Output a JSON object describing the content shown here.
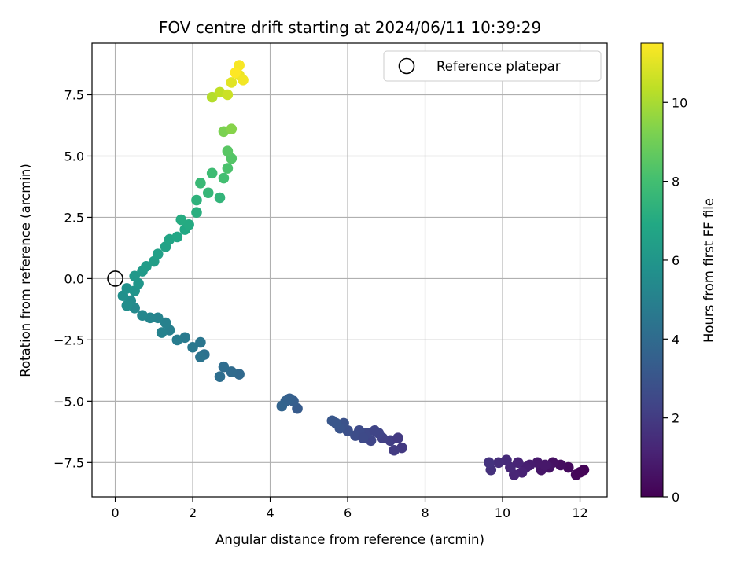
{
  "chart_data": {
    "type": "scatter",
    "title": "FOV centre drift starting at 2024/06/11 10:39:29",
    "xlabel": "Angular distance from reference (arcmin)",
    "ylabel": "Rotation from reference (arcmin)",
    "xlim": [
      -0.6,
      12.7
    ],
    "ylim": [
      -8.9,
      9.6
    ],
    "xticks": [
      0,
      2,
      4,
      6,
      8,
      10,
      12
    ],
    "xtick_labels": [
      "0",
      "2",
      "4",
      "6",
      "8",
      "10",
      "12"
    ],
    "yticks": [
      -7.5,
      -5.0,
      -2.5,
      0.0,
      2.5,
      5.0,
      7.5
    ],
    "ytick_labels": [
      "−7.5",
      "−5.0",
      "−2.5",
      "0.0",
      "2.5",
      "5.0",
      "7.5"
    ],
    "grid": true,
    "legend": {
      "placement": "top-right",
      "entries": [
        "Reference platepar"
      ]
    },
    "reference_point": {
      "x": 0,
      "y": 0
    },
    "colorbar": {
      "label": "Hours from first FF file",
      "colormap": "viridis",
      "range": [
        0,
        11.5
      ],
      "ticks": [
        0,
        2,
        4,
        6,
        8,
        10
      ],
      "tick_labels": [
        "0",
        "2",
        "4",
        "6",
        "8",
        "10"
      ]
    },
    "points": [
      [
        12.1,
        -7.8,
        0.1
      ],
      [
        11.9,
        -8.0,
        0.2
      ],
      [
        11.7,
        -7.7,
        0.3
      ],
      [
        11.5,
        -7.6,
        0.4
      ],
      [
        11.3,
        -7.5,
        0.5
      ],
      [
        11.2,
        -7.7,
        0.6
      ],
      [
        11.0,
        -7.8,
        0.7
      ],
      [
        10.9,
        -7.5,
        0.8
      ],
      [
        10.7,
        -7.6,
        0.9
      ],
      [
        10.6,
        -7.7,
        1.0
      ],
      [
        10.5,
        -7.9,
        1.1
      ],
      [
        10.3,
        -8.0,
        1.2
      ],
      [
        10.2,
        -7.7,
        1.3
      ],
      [
        10.1,
        -7.4,
        1.4
      ],
      [
        9.9,
        -7.5,
        1.5
      ],
      [
        9.7,
        -7.8,
        1.6
      ],
      [
        9.65,
        -7.5,
        1.7
      ],
      [
        12.0,
        -7.9,
        0.15
      ],
      [
        11.1,
        -7.6,
        0.75
      ],
      [
        10.4,
        -7.5,
        1.15
      ],
      [
        7.4,
        -6.9,
        1.9
      ],
      [
        7.2,
        -7.0,
        2.0
      ],
      [
        7.1,
        -6.6,
        2.1
      ],
      [
        6.9,
        -6.5,
        2.2
      ],
      [
        6.8,
        -6.3,
        2.3
      ],
      [
        6.6,
        -6.6,
        2.4
      ],
      [
        6.5,
        -6.3,
        2.5
      ],
      [
        6.3,
        -6.2,
        2.6
      ],
      [
        6.2,
        -6.4,
        2.7
      ],
      [
        6.0,
        -6.2,
        2.8
      ],
      [
        5.9,
        -5.9,
        2.9
      ],
      [
        5.8,
        -6.1,
        3.0
      ],
      [
        5.6,
        -5.8,
        3.1
      ],
      [
        7.3,
        -6.5,
        1.95
      ],
      [
        6.7,
        -6.2,
        2.35
      ],
      [
        6.4,
        -6.5,
        2.55
      ],
      [
        5.7,
        -5.9,
        3.05
      ],
      [
        4.7,
        -5.3,
        3.3
      ],
      [
        4.6,
        -5.0,
        3.4
      ],
      [
        4.5,
        -4.9,
        3.5
      ],
      [
        4.4,
        -5.0,
        3.6
      ],
      [
        4.3,
        -5.2,
        3.7
      ],
      [
        3.2,
        -3.9,
        3.9
      ],
      [
        3.0,
        -3.8,
        4.0
      ],
      [
        2.8,
        -3.6,
        4.1
      ],
      [
        2.7,
        -4.0,
        4.15
      ],
      [
        2.3,
        -3.1,
        4.3
      ],
      [
        2.2,
        -3.2,
        4.4
      ],
      [
        2.2,
        -2.6,
        4.5
      ],
      [
        2.0,
        -2.8,
        4.6
      ],
      [
        1.8,
        -2.4,
        4.7
      ],
      [
        1.6,
        -2.5,
        4.8
      ],
      [
        1.4,
        -2.1,
        4.9
      ],
      [
        1.3,
        -1.8,
        5.0
      ],
      [
        1.2,
        -2.2,
        5.05
      ],
      [
        1.1,
        -1.6,
        5.1
      ],
      [
        0.9,
        -1.6,
        5.2
      ],
      [
        0.7,
        -1.5,
        5.3
      ],
      [
        0.5,
        -1.2,
        5.4
      ],
      [
        0.4,
        -0.9,
        5.5
      ],
      [
        0.3,
        -1.1,
        5.6
      ],
      [
        0.2,
        -0.7,
        5.7
      ],
      [
        0.3,
        -0.4,
        5.8
      ],
      [
        0.5,
        -0.5,
        5.9
      ],
      [
        0.6,
        -0.2,
        6.0
      ],
      [
        0.5,
        0.1,
        6.1
      ],
      [
        0.7,
        0.3,
        6.2
      ],
      [
        0.8,
        0.5,
        6.3
      ],
      [
        1.0,
        0.7,
        6.4
      ],
      [
        1.1,
        1.0,
        6.5
      ],
      [
        1.3,
        1.3,
        6.6
      ],
      [
        1.4,
        1.6,
        6.7
      ],
      [
        1.6,
        1.7,
        6.8
      ],
      [
        1.8,
        2.0,
        6.9
      ],
      [
        1.9,
        2.2,
        7.0
      ],
      [
        1.7,
        2.4,
        7.05
      ],
      [
        2.1,
        2.7,
        7.2
      ],
      [
        2.1,
        3.2,
        7.35
      ],
      [
        2.7,
        3.3,
        7.5
      ],
      [
        2.4,
        3.5,
        7.6
      ],
      [
        2.2,
        3.9,
        7.7
      ],
      [
        2.5,
        4.3,
        7.85
      ],
      [
        2.8,
        4.1,
        8.0
      ],
      [
        2.9,
        4.5,
        8.2
      ],
      [
        3.0,
        4.9,
        8.4
      ],
      [
        2.9,
        5.2,
        8.5
      ],
      [
        2.8,
        6.0,
        9.2
      ],
      [
        3.0,
        6.1,
        9.4
      ],
      [
        2.5,
        7.4,
        10.2
      ],
      [
        2.7,
        7.6,
        10.4
      ],
      [
        2.9,
        7.5,
        10.6
      ],
      [
        3.0,
        8.0,
        11.0
      ],
      [
        3.2,
        8.3,
        11.2
      ],
      [
        3.3,
        8.1,
        11.3
      ],
      [
        3.2,
        8.7,
        11.4
      ],
      [
        3.1,
        8.4,
        11.5
      ]
    ]
  }
}
